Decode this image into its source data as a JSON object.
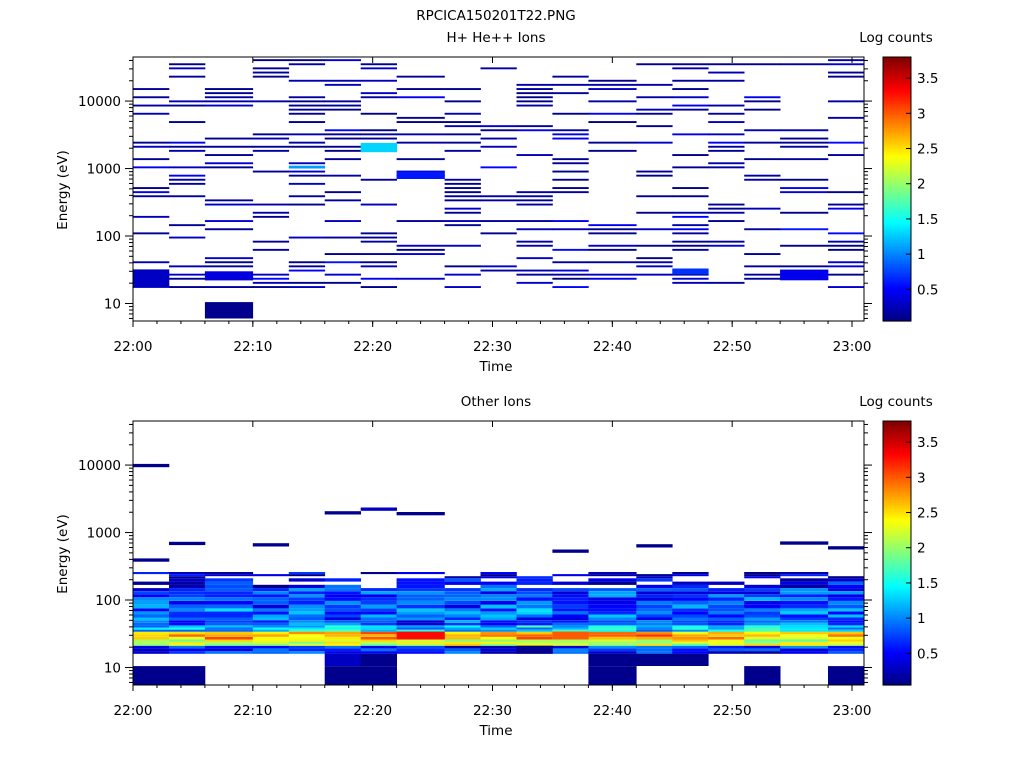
{
  "figure": {
    "title": "RPCICA150201T22.PNG"
  },
  "chart_data": [
    {
      "type": "heatmap",
      "title": "H+ He++ Ions",
      "xlabel": "Time",
      "ylabel": "Energy (eV)",
      "x_ticks": [
        "22:00",
        "22:10",
        "22:20",
        "22:30",
        "22:40",
        "22:50",
        "23:00"
      ],
      "x_range": [
        "22:00",
        "23:01"
      ],
      "y_scale": "log",
      "y_ticks": [
        10,
        100,
        1000,
        10000
      ],
      "y_range": [
        5.5,
        45000
      ],
      "colorbar": {
        "label": "Log counts",
        "range": [
          0.05,
          3.8
        ],
        "ticks": [
          0.5,
          1,
          1.5,
          2,
          2.5,
          3,
          3.5
        ],
        "colormap": "jet"
      },
      "seed": 11,
      "density": 0.33,
      "energy_bins": 64,
      "time_columns": [
        "22:00",
        "22:03",
        "22:06",
        "22:10",
        "22:13",
        "22:16",
        "22:19",
        "22:22",
        "22:26",
        "22:29",
        "22:32",
        "22:35",
        "22:38",
        "22:42",
        "22:45",
        "22:48",
        "22:51",
        "22:54",
        "22:58"
      ],
      "cells": [
        {
          "t": 0,
          "e_lo": 17,
          "e_hi": 32,
          "v": 0.3
        },
        {
          "t": 2,
          "e_lo": 6,
          "e_hi": 10.5,
          "v": 0.1
        },
        {
          "t": 2,
          "e_lo": 22,
          "e_hi": 30,
          "v": 0.4
        },
        {
          "t": 6,
          "e_lo": 1750,
          "e_hi": 2400,
          "v": 1.3
        },
        {
          "t": 7,
          "e_lo": 700,
          "e_hi": 900,
          "v": 0.6
        },
        {
          "t": 14,
          "e_lo": 27,
          "e_hi": 33,
          "v": 0.7
        },
        {
          "t": 17,
          "e_lo": 22,
          "e_hi": 31,
          "v": 0.45
        },
        {
          "t": 4,
          "e_lo": 1000,
          "e_hi": 1100,
          "v": 1.1
        }
      ]
    },
    {
      "type": "heatmap",
      "title": "Other Ions",
      "xlabel": "Time",
      "ylabel": "Energy (eV)",
      "x_ticks": [
        "22:00",
        "22:10",
        "22:20",
        "22:30",
        "22:40",
        "22:50",
        "23:00"
      ],
      "x_range": [
        "22:00",
        "23:01"
      ],
      "y_scale": "log",
      "y_ticks": [
        10,
        100,
        1000,
        10000
      ],
      "y_range": [
        5.5,
        45000
      ],
      "colorbar": {
        "label": "Log counts",
        "range": [
          0.05,
          3.8
        ],
        "ticks": [
          0.5,
          1,
          1.5,
          2,
          2.5,
          3,
          3.5
        ],
        "colormap": "jet"
      },
      "seed": 29,
      "band_profile": [
        {
          "e_lo": 16,
          "e_hi": 21,
          "v": 0.6
        },
        {
          "e_lo": 21,
          "e_hi": 26,
          "v": 2.2
        },
        {
          "e_lo": 26,
          "e_hi": 34,
          "v": 2.7
        },
        {
          "e_lo": 34,
          "e_hi": 42,
          "v": 1.3
        },
        {
          "e_lo": 42,
          "e_hi": 55,
          "v": 0.8
        },
        {
          "e_lo": 55,
          "e_hi": 75,
          "v": 0.9
        },
        {
          "e_lo": 75,
          "e_hi": 110,
          "v": 0.8
        },
        {
          "e_lo": 110,
          "e_hi": 150,
          "v": 0.7
        },
        {
          "e_lo": 150,
          "e_hi": 210,
          "v": 0.5
        },
        {
          "e_lo": 210,
          "e_hi": 260,
          "v": 0.3
        }
      ],
      "time_columns": [
        "22:00",
        "22:03",
        "22:06",
        "22:10",
        "22:13",
        "22:16",
        "22:19",
        "22:22",
        "22:26",
        "22:29",
        "22:32",
        "22:35",
        "22:38",
        "22:42",
        "22:45",
        "22:48",
        "22:51",
        "22:54",
        "22:58"
      ],
      "sparse_lines": [
        {
          "t": 0,
          "e": 9300,
          "v": 0.1
        },
        {
          "t": 0,
          "e": 370,
          "v": 0.1
        },
        {
          "t": 1,
          "e": 650,
          "v": 0.1
        },
        {
          "t": 3,
          "e": 620,
          "v": 0.1
        },
        {
          "t": 5,
          "e": 1850,
          "v": 0.1
        },
        {
          "t": 6,
          "e": 2100,
          "v": 0.3
        },
        {
          "t": 7,
          "e": 1800,
          "v": 0.1
        },
        {
          "t": 11,
          "e": 500,
          "v": 0.1
        },
        {
          "t": 13,
          "e": 600,
          "v": 0.1
        },
        {
          "t": 17,
          "e": 660,
          "v": 0.1
        },
        {
          "t": 18,
          "e": 560,
          "v": 0.1
        }
      ],
      "cells": [
        {
          "t": 0,
          "e_lo": 5.5,
          "e_hi": 10.5,
          "v": 0.1
        },
        {
          "t": 1,
          "e_lo": 5.5,
          "e_hi": 10.5,
          "v": 0.1
        },
        {
          "t": 5,
          "e_lo": 5.5,
          "e_hi": 10.5,
          "v": 0.1
        },
        {
          "t": 6,
          "e_lo": 5.5,
          "e_hi": 10.5,
          "v": 0.1
        },
        {
          "t": 5,
          "e_lo": 10.5,
          "e_hi": 16,
          "v": 0.3
        },
        {
          "t": 6,
          "e_lo": 10.5,
          "e_hi": 16,
          "v": 0.1
        },
        {
          "t": 12,
          "e_lo": 5.5,
          "e_hi": 10.5,
          "v": 0.1
        },
        {
          "t": 16,
          "e_lo": 5.5,
          "e_hi": 10.5,
          "v": 0.1
        },
        {
          "t": 18,
          "e_lo": 5.5,
          "e_hi": 10.5,
          "v": 0.1
        },
        {
          "t": 12,
          "e_lo": 10.5,
          "e_hi": 16,
          "v": 0.1
        },
        {
          "t": 13,
          "e_lo": 10.5,
          "e_hi": 16,
          "v": 0.1
        },
        {
          "t": 14,
          "e_lo": 10.5,
          "e_hi": 16,
          "v": 0.1
        },
        {
          "t": 7,
          "e_lo": 26,
          "e_hi": 34,
          "v": 3.3
        },
        {
          "t": 11,
          "e_lo": 26,
          "e_hi": 34,
          "v": 3.0
        },
        {
          "t": 10,
          "e_lo": 16,
          "e_hi": 21,
          "v": 0.1
        }
      ]
    }
  ]
}
